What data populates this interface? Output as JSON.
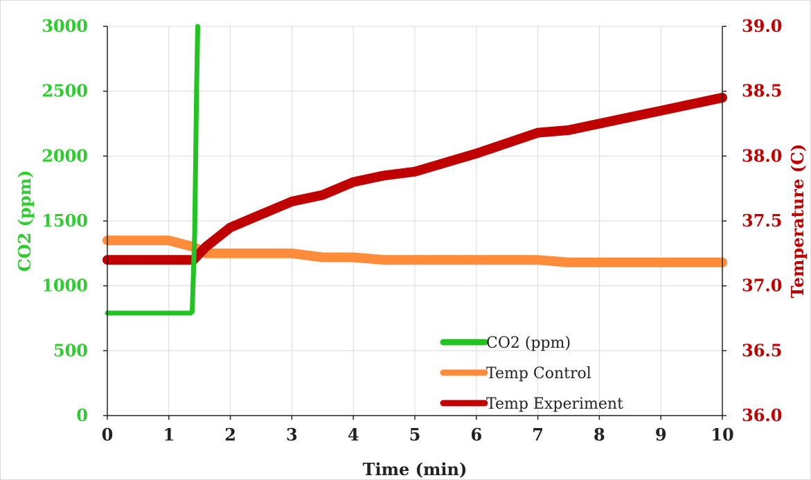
{
  "chart_data": {
    "type": "line",
    "title": "",
    "xlabel": "Time (min)",
    "ylabel_left": "CO2 (ppm)",
    "ylabel_right": "Temperature (C)",
    "xlim": [
      0,
      10
    ],
    "ylim_left": [
      0,
      3000
    ],
    "ylim_right": [
      36.0,
      39.0
    ],
    "x_ticks": [
      "0",
      "1",
      "2",
      "3",
      "4",
      "5",
      "6",
      "7",
      "8",
      "9",
      "10"
    ],
    "y_left_ticks": [
      "0",
      "500",
      "1000",
      "1500",
      "2000",
      "2500",
      "3000"
    ],
    "y_right_ticks": [
      "36.0",
      "36.5",
      "37.0",
      "37.5",
      "38.0",
      "38.5",
      "39.0"
    ],
    "grid": true,
    "legend_position": "bottom-right",
    "colors": {
      "co2": "#22c322",
      "control": "#ff8c3a",
      "experiment": "#c00000",
      "left_axis_text": "#2ecc2e",
      "right_axis_text": "#c00000",
      "grid": "#d9d9d9"
    },
    "series": [
      {
        "name": "CO2 (ppm)",
        "axis": "left",
        "x": [
          0.0,
          1.35,
          1.38,
          1.42,
          1.45,
          1.47
        ],
        "y": [
          790,
          790,
          800,
          1400,
          2500,
          3000
        ]
      },
      {
        "name": "Temp Control",
        "axis": "right",
        "x": [
          0.0,
          0.5,
          1.0,
          1.4,
          1.6,
          2.0,
          2.5,
          3.0,
          3.5,
          4.0,
          4.5,
          5.0,
          5.5,
          6.0,
          6.5,
          7.0,
          7.5,
          8.0,
          8.5,
          9.0,
          9.5,
          10.0
        ],
        "y": [
          37.35,
          37.35,
          37.35,
          37.3,
          37.25,
          37.25,
          37.25,
          37.25,
          37.22,
          37.22,
          37.2,
          37.2,
          37.2,
          37.2,
          37.2,
          37.2,
          37.18,
          37.18,
          37.18,
          37.18,
          37.18,
          37.18
        ]
      },
      {
        "name": "Temp Experiment",
        "axis": "right",
        "x": [
          0.0,
          0.5,
          1.0,
          1.4,
          1.6,
          2.0,
          2.5,
          3.0,
          3.5,
          4.0,
          4.5,
          5.0,
          5.5,
          6.0,
          6.5,
          7.0,
          7.5,
          8.0,
          8.5,
          9.0,
          9.5,
          10.0
        ],
        "y": [
          37.2,
          37.2,
          37.2,
          37.2,
          37.3,
          37.45,
          37.55,
          37.65,
          37.7,
          37.8,
          37.85,
          37.88,
          37.95,
          38.02,
          38.1,
          38.18,
          38.2,
          38.25,
          38.3,
          38.35,
          38.4,
          38.45
        ]
      }
    ]
  }
}
